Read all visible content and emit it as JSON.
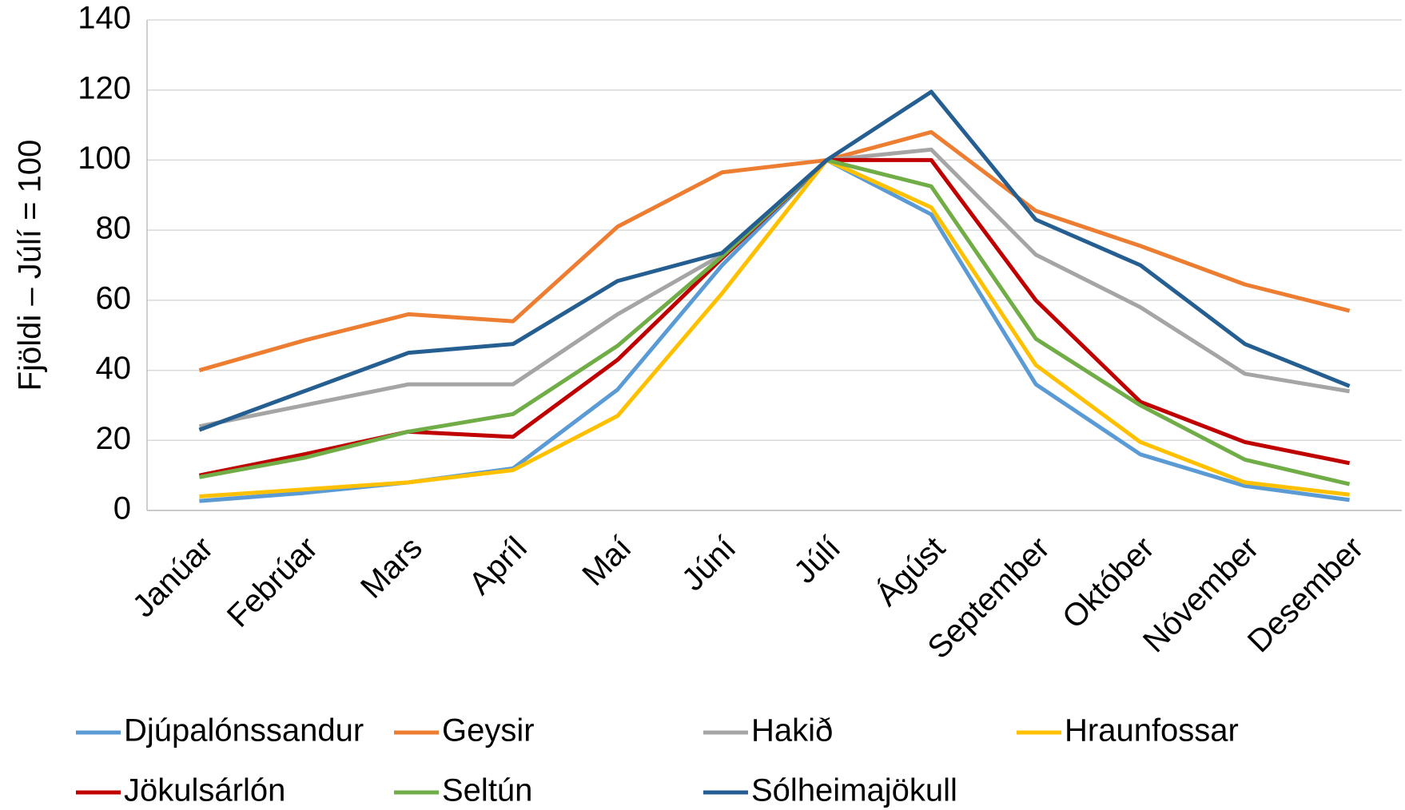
{
  "chart_data": {
    "type": "line",
    "ylabel": "Fjöldi – Júlí = 100",
    "categories": [
      "Janúar",
      "Febrúar",
      "Mars",
      "Apríl",
      "Maí",
      "Júní",
      "Júlí",
      "Ágúst",
      "September",
      "Október",
      "Nóvember",
      "Desember"
    ],
    "series": [
      {
        "name": "Djúpalónssandur",
        "color": "#5b9bd5",
        "values": [
          2.7,
          5,
          8,
          12,
          34.5,
          70,
          100,
          84.5,
          36,
          16,
          7,
          3
        ]
      },
      {
        "name": "Geysir",
        "color": "#ed7d31",
        "values": [
          40,
          48.5,
          56,
          54,
          81,
          96.5,
          100,
          108,
          85.5,
          75.5,
          64.5,
          57
        ]
      },
      {
        "name": "Hakið",
        "color": "#a5a5a5",
        "values": [
          24,
          30,
          36,
          36,
          56,
          73,
          100,
          103,
          73,
          58,
          39,
          34
        ]
      },
      {
        "name": "Hraunfossar",
        "color": "#ffc000",
        "values": [
          4,
          6,
          8,
          11.5,
          27,
          62,
          100,
          86.5,
          41.5,
          19.5,
          8,
          4.5
        ]
      },
      {
        "name": "Jökulsárlón",
        "color": "#c00000",
        "values": [
          10,
          16,
          22.5,
          21,
          43,
          72,
          100,
          100,
          60,
          31,
          19.5,
          13.5
        ]
      },
      {
        "name": "Seltún",
        "color": "#70ad47",
        "values": [
          9.5,
          15,
          22.5,
          27.5,
          47,
          72.5,
          100,
          92.5,
          49,
          30,
          14.5,
          7.5
        ]
      },
      {
        "name": "Sólheimajökull",
        "color": "#255e91",
        "values": [
          23,
          34,
          45,
          47.5,
          65.5,
          73.5,
          100,
          119.5,
          83,
          70,
          47.5,
          35.5
        ]
      }
    ],
    "ylim": [
      0,
      140
    ],
    "yticks": [
      0,
      20,
      40,
      60,
      80,
      100,
      120,
      140
    ],
    "grid": true,
    "legend": "bottom"
  }
}
